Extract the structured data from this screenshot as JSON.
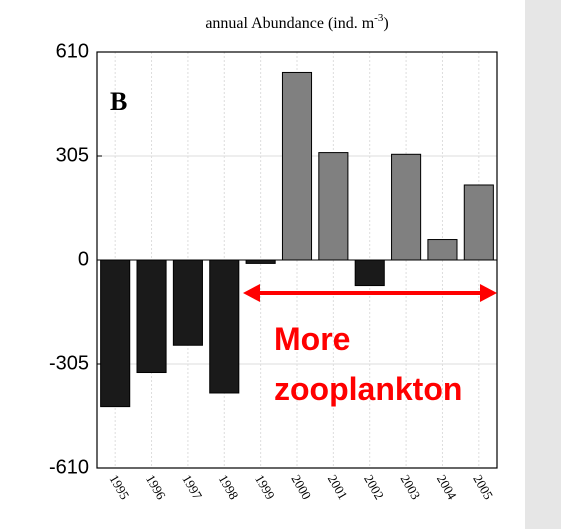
{
  "chart_data": {
    "type": "bar",
    "title": "annual Abundance (ind. m",
    "title_superscript": "-3",
    "title_suffix": ")",
    "panel_label": "B",
    "annotation_lines": [
      "More",
      "zooplankton"
    ],
    "annotation_color": "#ff0000",
    "categories": [
      "1995",
      "1996",
      "1997",
      "1998",
      "1999",
      "2000",
      "2001",
      "2002",
      "2003",
      "2004",
      "2005"
    ],
    "values": [
      -430,
      -330,
      -250,
      -390,
      -10,
      550,
      315,
      -75,
      310,
      60,
      220
    ],
    "colors": [
      "#1a1a1a",
      "#1a1a1a",
      "#1a1a1a",
      "#1a1a1a",
      "#1a1a1a",
      "#808080",
      "#808080",
      "#1a1a1a",
      "#808080",
      "#808080",
      "#808080"
    ],
    "ylim": [
      -610,
      610
    ],
    "yticks": [
      610,
      305,
      0,
      -305,
      -610
    ],
    "grid": true
  }
}
